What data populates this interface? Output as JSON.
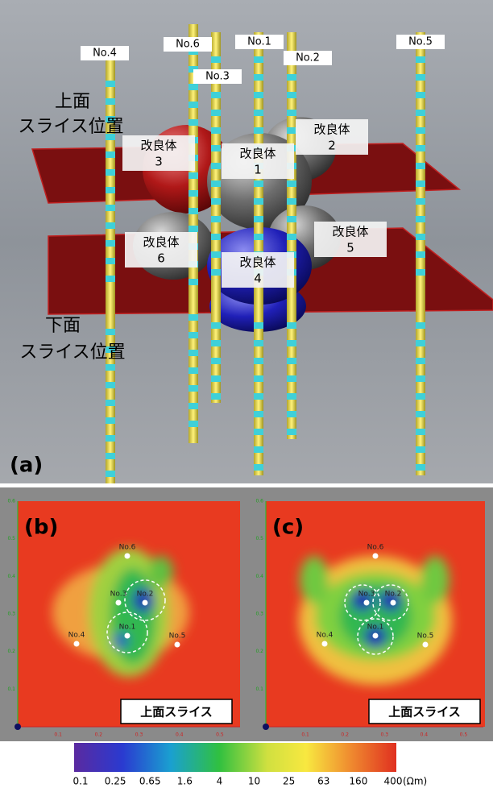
{
  "panel_a": {
    "label": "(a)",
    "wells": [
      "No.4",
      "No.6",
      "No.3",
      "No.1",
      "No.2",
      "No.5"
    ],
    "upper_slice": [
      "上面",
      "スライス位置"
    ],
    "lower_slice": [
      "下面",
      "スライス位置"
    ],
    "bodies": [
      {
        "name": "改良体",
        "number": 3
      },
      {
        "name": "改良体",
        "number": 1
      },
      {
        "name": "改良体",
        "number": 2
      },
      {
        "name": "改良体",
        "number": 6
      },
      {
        "name": "改良体",
        "number": 4
      },
      {
        "name": "改良体",
        "number": 5
      }
    ]
  },
  "panel_b": {
    "label": "(b)",
    "wells": [
      "No.6",
      "No.3",
      "No.2",
      "No.1",
      "No.4",
      "No.5"
    ],
    "caption": "上面スライス",
    "xticks": [
      0.1,
      0.2,
      0.3,
      0.4,
      0.5
    ],
    "yticks": [
      0.1,
      0.2,
      0.3,
      0.4,
      0.5,
      0.6
    ]
  },
  "panel_c": {
    "label": "(c)",
    "wells": [
      "No.6",
      "No.3",
      "No.2",
      "No.1",
      "No.4",
      "No.5"
    ],
    "caption": "上面スライス",
    "xticks": [
      0.1,
      0.2,
      0.3,
      0.4,
      0.5
    ],
    "yticks": [
      0.1,
      0.2,
      0.3,
      0.4,
      0.5,
      0.6
    ]
  },
  "colorbar": {
    "ticks": [
      0.1,
      0.25,
      0.65,
      1.6,
      4,
      10,
      25,
      63,
      160,
      400
    ],
    "unit": "(Ωm)"
  }
}
